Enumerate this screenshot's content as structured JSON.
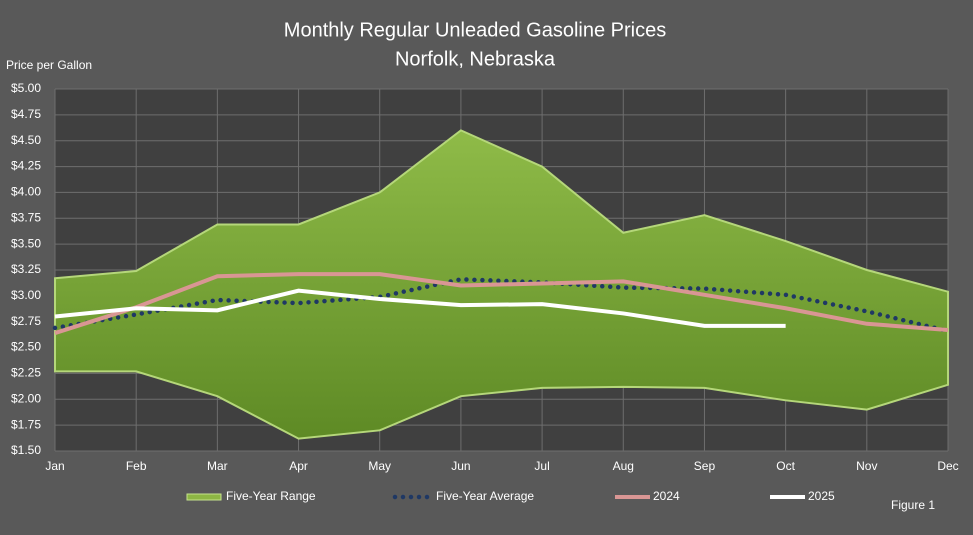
{
  "chart_data": {
    "type": "line",
    "title": "Monthly Regular Unleaded Gasoline Prices",
    "subtitle": "Norfolk, Nebraska",
    "y_label": "Price per Gallon",
    "figure_label": "Figure 1",
    "categories": [
      "Jan",
      "Feb",
      "Mar",
      "Apr",
      "May",
      "Jun",
      "Jul",
      "Aug",
      "Sep",
      "Oct",
      "Nov",
      "Dec"
    ],
    "range": {
      "name": "Five-Year Range",
      "color": "#8db644",
      "high": [
        3.17,
        3.24,
        3.69,
        3.69,
        4.0,
        4.6,
        4.25,
        3.61,
        3.78,
        3.53,
        3.25,
        3.04
      ],
      "low": [
        2.27,
        2.27,
        2.03,
        1.62,
        1.7,
        2.03,
        2.11,
        2.12,
        2.11,
        1.99,
        1.9,
        2.14
      ]
    },
    "series": [
      {
        "name": "Five-Year Average",
        "color": "#1f3864",
        "dotted": true,
        "values": [
          2.69,
          2.82,
          2.96,
          2.93,
          2.99,
          3.16,
          3.13,
          3.08,
          3.07,
          3.01,
          2.85,
          2.66
        ]
      },
      {
        "name": "2024",
        "color": "#d99694",
        "values": [
          2.64,
          2.89,
          3.19,
          3.21,
          3.21,
          3.1,
          3.12,
          3.14,
          3.01,
          2.88,
          2.73,
          2.67
        ]
      },
      {
        "name": "2025",
        "color": "#ffffff",
        "values": [
          2.8,
          2.88,
          2.86,
          3.05,
          2.97,
          2.91,
          2.92,
          2.83,
          2.71,
          2.71,
          null,
          null
        ]
      }
    ],
    "ylim": [
      1.5,
      5.0
    ],
    "yticks": [
      {
        "value": 1.5,
        "label": "$1.50"
      },
      {
        "value": 1.75,
        "label": "$1.75"
      },
      {
        "value": 2.0,
        "label": "$2.00"
      },
      {
        "value": 2.25,
        "label": "$2.25"
      },
      {
        "value": 2.5,
        "label": "$2.50"
      },
      {
        "value": 2.75,
        "label": "$2.75"
      },
      {
        "value": 3.0,
        "label": "$3.00"
      },
      {
        "value": 3.25,
        "label": "$3.25"
      },
      {
        "value": 3.5,
        "label": "$3.50"
      },
      {
        "value": 3.75,
        "label": "$3.75"
      },
      {
        "value": 4.0,
        "label": "$4.00"
      },
      {
        "value": 4.25,
        "label": "$4.25"
      },
      {
        "value": 4.5,
        "label": "$4.50"
      },
      {
        "value": 4.75,
        "label": "$4.75"
      },
      {
        "value": 5.0,
        "label": "$5.00"
      }
    ],
    "grid": true
  }
}
